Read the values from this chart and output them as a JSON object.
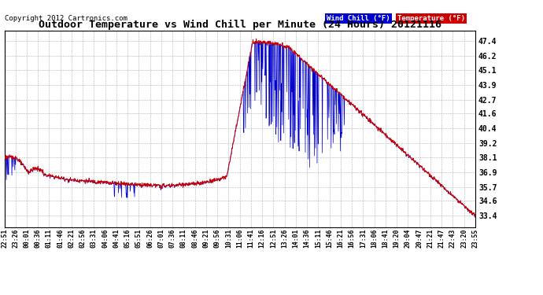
{
  "title": "Outdoor Temperature vs Wind Chill per Minute (24 Hours) 20121116",
  "copyright": "Copyright 2012 Cartronics.com",
  "legend_wind_chill": "Wind Chill (°F)",
  "legend_temperature": "Temperature (°F)",
  "background_color": "#ffffff",
  "plot_bg_color": "#ffffff",
  "grid_color": "#b0b0b0",
  "wind_chill_color": "#0000cc",
  "temperature_color": "#cc0000",
  "yticks": [
    33.4,
    34.6,
    35.7,
    36.9,
    38.1,
    39.2,
    40.4,
    41.6,
    42.7,
    43.9,
    45.1,
    46.2,
    47.4
  ],
  "ylim": [
    32.5,
    48.2
  ],
  "xtick_labels": [
    "22:51",
    "23:26",
    "00:01",
    "00:36",
    "01:11",
    "01:46",
    "02:21",
    "02:56",
    "03:31",
    "04:06",
    "04:41",
    "05:16",
    "05:51",
    "06:26",
    "07:01",
    "07:36",
    "08:11",
    "08:46",
    "09:21",
    "09:56",
    "10:31",
    "11:06",
    "11:41",
    "12:16",
    "12:51",
    "13:26",
    "14:01",
    "14:36",
    "15:11",
    "15:46",
    "16:21",
    "16:56",
    "17:31",
    "18:06",
    "18:41",
    "19:20",
    "20:04",
    "20:47",
    "21:21",
    "21:47",
    "22:43",
    "23:20",
    "23:55"
  ],
  "num_points": 1440
}
